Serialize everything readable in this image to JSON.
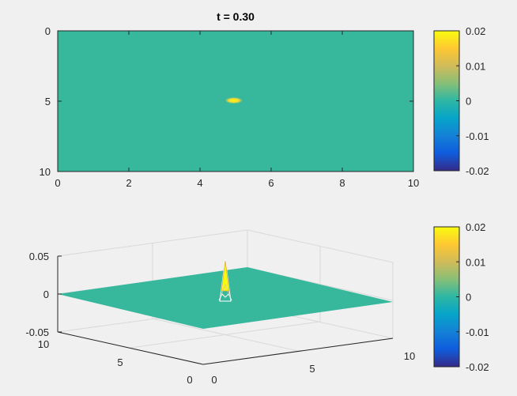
{
  "chart_data": [
    {
      "type": "heatmap",
      "title": "t = 0.30",
      "xlabel": "",
      "ylabel": "",
      "xlim": [
        0,
        10
      ],
      "ylim": [
        0,
        10
      ],
      "y_reversed": true,
      "x_ticks": [
        "0",
        "2",
        "4",
        "6",
        "8",
        "10"
      ],
      "y_ticks": [
        "0",
        "5",
        "10"
      ],
      "background_value": 0,
      "peak": {
        "x": 4.95,
        "y": 4.95,
        "value": 0.02
      },
      "colorbar": {
        "clim": [
          -0.02,
          0.02
        ],
        "ticks": [
          "0.02",
          "0.01",
          "0",
          "-0.01",
          "-0.02"
        ]
      },
      "colormap": "parula"
    },
    {
      "type": "surface",
      "title": "",
      "xlim": [
        0,
        10
      ],
      "ylim": [
        0,
        10
      ],
      "zlim": [
        -0.05,
        0.05
      ],
      "x_ticks": [
        "0",
        "5",
        "10"
      ],
      "y_ticks": [
        "0",
        "5",
        "10"
      ],
      "z_ticks": [
        "0.05",
        "0",
        "-0.05"
      ],
      "peak": {
        "x": 5,
        "y": 5,
        "value": 0.02
      },
      "colorbar": {
        "clim": [
          -0.02,
          0.02
        ],
        "ticks": [
          "0.02",
          "0.01",
          "0",
          "-0.01",
          "-0.02"
        ]
      },
      "colormap": "parula"
    }
  ],
  "colors": {
    "surface_zero": "#37b89d",
    "peak": "#f9fb0e",
    "peak_edge": "#e3a63b",
    "background": "#f0f0f0"
  }
}
